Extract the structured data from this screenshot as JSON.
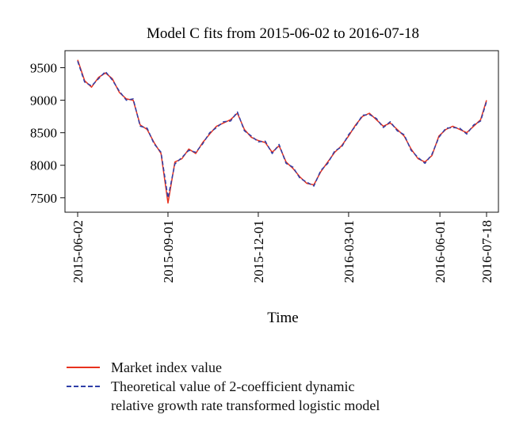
{
  "chart_data": {
    "type": "line",
    "title": "Model C fits from 2015-06-02 to 2016-07-18",
    "xlabel": "Time",
    "ylabel": "",
    "xlim": [
      "2015-06-02",
      "2016-07-18"
    ],
    "ylim": [
      7400,
      9640
    ],
    "y_ticks": [
      7500,
      8000,
      8500,
      9000,
      9500
    ],
    "x_ticks": [
      "2015-06-02",
      "2015-09-01",
      "2015-12-01",
      "2016-03-01",
      "2016-06-01",
      "2016-07-18"
    ],
    "grid": false,
    "legend_placement": "bottom",
    "x": [
      "2015-06-02",
      "2015-06-09",
      "2015-06-16",
      "2015-06-23",
      "2015-06-30",
      "2015-07-07",
      "2015-07-14",
      "2015-07-21",
      "2015-07-28",
      "2015-08-04",
      "2015-08-11",
      "2015-08-18",
      "2015-08-25",
      "2015-09-01",
      "2015-09-08",
      "2015-09-15",
      "2015-09-22",
      "2015-09-29",
      "2015-10-06",
      "2015-10-13",
      "2015-10-20",
      "2015-10-27",
      "2015-11-03",
      "2015-11-10",
      "2015-11-17",
      "2015-11-24",
      "2015-12-01",
      "2015-12-08",
      "2015-12-15",
      "2015-12-22",
      "2015-12-29",
      "2016-01-05",
      "2016-01-12",
      "2016-01-19",
      "2016-01-26",
      "2016-02-02",
      "2016-02-09",
      "2016-02-16",
      "2016-02-23",
      "2016-03-01",
      "2016-03-08",
      "2016-03-15",
      "2016-03-22",
      "2016-03-29",
      "2016-04-05",
      "2016-04-12",
      "2016-04-19",
      "2016-04-26",
      "2016-05-03",
      "2016-05-10",
      "2016-05-17",
      "2016-05-24",
      "2016-05-31",
      "2016-06-07",
      "2016-06-14",
      "2016-06-21",
      "2016-06-28",
      "2016-07-05",
      "2016-07-12",
      "2016-07-18"
    ],
    "series": [
      {
        "name": "Market index value",
        "color": "#e8321e",
        "dash": "solid",
        "values": [
          9620,
          9300,
          9200,
          9350,
          9420,
          9330,
          9120,
          9020,
          9000,
          8620,
          8550,
          8350,
          8180,
          7420,
          8050,
          8100,
          8250,
          8180,
          8350,
          8480,
          8600,
          8650,
          8700,
          8800,
          8550,
          8430,
          8380,
          8350,
          8200,
          8300,
          8050,
          7950,
          7820,
          7720,
          7700,
          7900,
          8050,
          8200,
          8300,
          8450,
          8620,
          8750,
          8800,
          8700,
          8600,
          8650,
          8550,
          8450,
          8250,
          8100,
          8050,
          8150,
          8450,
          8550,
          8600,
          8550,
          8500,
          8600,
          8700,
          9000
        ]
      },
      {
        "name": "Theoretical value of 2-coefficient dynamic relative growth rate transformed logistic model",
        "color": "#2f3fa8",
        "dash": "dashed",
        "values": [
          9600,
          9280,
          9220,
          9330,
          9440,
          9310,
          9140,
          9000,
          9020,
          8600,
          8570,
          8330,
          8200,
          7500,
          8020,
          8120,
          8230,
          8200,
          8330,
          8500,
          8580,
          8670,
          8680,
          8820,
          8530,
          8450,
          8360,
          8370,
          8180,
          8320,
          8030,
          7970,
          7800,
          7740,
          7680,
          7920,
          8030,
          8220,
          8280,
          8470,
          8600,
          8770,
          8780,
          8720,
          8580,
          8670,
          8530,
          8470,
          8230,
          8120,
          8030,
          8170,
          8430,
          8570,
          8580,
          8570,
          8480,
          8620,
          8680,
          8980
        ]
      }
    ]
  },
  "legend": {
    "items": [
      {
        "label": "Market index value",
        "color": "#e8321e"
      },
      {
        "label": "Theoretical value of 2-coefficient dynamic",
        "label_cont": "relative growth rate transformed logistic model",
        "color": "#2f3fa8"
      }
    ]
  }
}
